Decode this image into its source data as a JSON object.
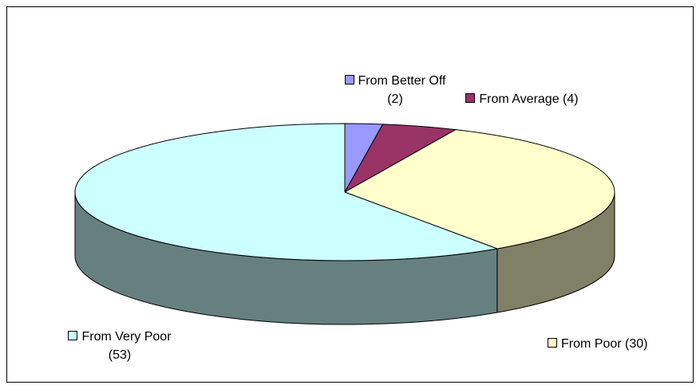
{
  "chart_data": {
    "type": "pie3d",
    "categories": [
      "From Better Off",
      "From Average",
      "From Poor",
      "From Very Poor"
    ],
    "values": [
      2,
      4,
      30,
      53
    ],
    "value_labels": [
      "(2)",
      "(4)",
      "(30)",
      "(53)"
    ],
    "colors": [
      "#9999ff",
      "#993366",
      "#ffffcc",
      "#ccffff"
    ]
  }
}
